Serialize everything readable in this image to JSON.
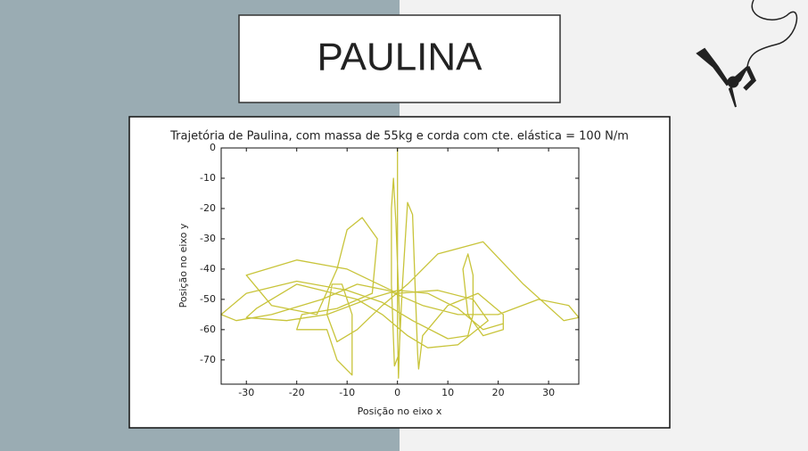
{
  "slide": {
    "title": "PAULINA"
  },
  "chart_data": {
    "type": "line",
    "title": "Trajetória de Paulina, com massa de 55kg e corda com cte. elástica = 100 N/m",
    "xlabel": "Posição no eixo x",
    "ylabel": "Posição no eixo y",
    "xlim": [
      -35,
      36
    ],
    "ylim": [
      -78,
      0
    ],
    "xticks": [
      -30,
      -20,
      -10,
      0,
      10,
      20,
      30
    ],
    "yticks": [
      0,
      -10,
      -20,
      -30,
      -40,
      -50,
      -60,
      -70
    ],
    "x": [
      0,
      0,
      0,
      0.2,
      0.5,
      -0.3,
      -0.8,
      -1.2,
      -1.2,
      -0.6,
      0.3,
      1,
      2,
      3,
      3.5,
      4,
      4.2,
      5,
      10,
      16,
      21,
      21,
      17,
      14,
      13,
      14,
      15,
      15,
      14,
      10,
      3,
      -3,
      -10,
      -20,
      -30,
      -35,
      -32,
      -25,
      -15,
      -8,
      -2,
      5,
      12,
      20,
      28,
      34,
      36,
      33,
      25,
      17,
      8,
      2,
      -3,
      -8,
      -12,
      -14,
      -13,
      -11,
      -9,
      -9,
      -12,
      -14,
      -20,
      -19,
      -12,
      -5,
      -4,
      -7,
      -10,
      -12,
      -16,
      -25,
      -30,
      -20,
      -10,
      0,
      8,
      15,
      18,
      12,
      6,
      2,
      -3,
      -8,
      -15,
      -20,
      -28,
      -30,
      -22,
      -14,
      -6,
      0,
      6,
      12,
      17,
      21
    ],
    "series": [
      {
        "color": "#c8c43a",
        "values": [
          0,
          -30,
          -60,
          -76,
          -60,
          -25,
          -10,
          -20,
          -45,
          -72,
          -68,
          -45,
          -18,
          -22,
          -45,
          -68,
          -73,
          -62,
          -52,
          -48,
          -55,
          -60,
          -62,
          -55,
          -40,
          -35,
          -42,
          -55,
          -62,
          -63,
          -57,
          -51,
          -47,
          -44,
          -48,
          -55,
          -57,
          -55,
          -50,
          -45,
          -47,
          -52,
          -55,
          -55,
          -50,
          -52,
          -56,
          -57,
          -45,
          -31,
          -35,
          -45,
          -52,
          -60,
          -64,
          -55,
          -45,
          -45,
          -55,
          -75,
          -70,
          -60,
          -60,
          -55,
          -53,
          -48,
          -30,
          -23,
          -27,
          -40,
          -55,
          -52,
          -42,
          -37,
          -40,
          -48,
          -47,
          -50,
          -57,
          -65,
          -66,
          -62,
          -55,
          -50,
          -47,
          -45,
          -53,
          -56,
          -57,
          -55,
          -50,
          -47,
          -48,
          -53,
          -60,
          -58
        ]
      }
    ]
  }
}
